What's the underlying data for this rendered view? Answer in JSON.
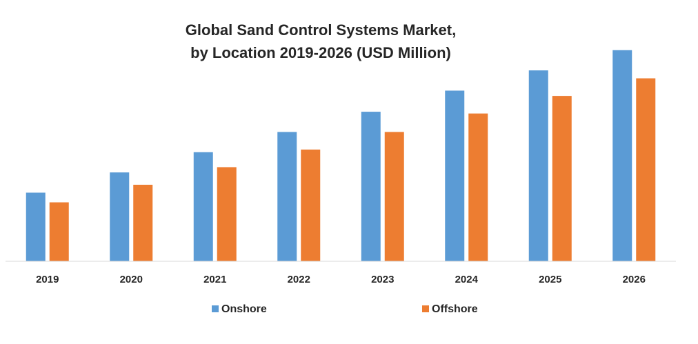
{
  "chart_data": {
    "type": "bar",
    "title_lines": [
      "Global Sand Control Systems Market,",
      "by Location 2019-2026 (USD Million)"
    ],
    "categories": [
      "2019",
      "2020",
      "2021",
      "2022",
      "2023",
      "2024",
      "2025",
      "2026"
    ],
    "series": [
      {
        "name": "Onshore",
        "color": "#5b9bd5",
        "values": [
          78,
          101,
          124,
          147,
          170,
          194,
          217,
          240
        ]
      },
      {
        "name": "Offshore",
        "color": "#ed7d31",
        "values": [
          67,
          87,
          107,
          127,
          147,
          168,
          188,
          208
        ]
      }
    ],
    "ylim": [
      0,
      250
    ],
    "grid": false,
    "legend": "bottom-center",
    "xlabel": "",
    "ylabel": ""
  }
}
